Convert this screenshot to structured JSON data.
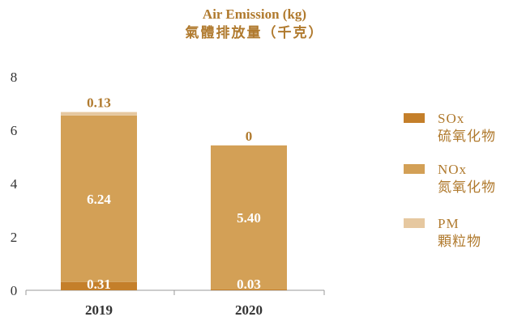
{
  "chart_data": {
    "type": "bar",
    "stacked": true,
    "title": "Air Emission (kg)",
    "subtitle": "氣體排放量（千克）",
    "categories": [
      "2019",
      "2020"
    ],
    "ylim": [
      0,
      8
    ],
    "yticks": [
      0,
      2,
      4,
      6,
      8
    ],
    "grid": false,
    "legend_position": "right",
    "series": [
      {
        "name": "SOx",
        "name_zh": "硫氧化物",
        "values": [
          0.31,
          0.03
        ],
        "labels": [
          "0.31",
          "0.03"
        ],
        "color": "#c47f2a",
        "label_color": "#ffffff"
      },
      {
        "name": "NOx",
        "name_zh": "氮氧化物",
        "values": [
          6.24,
          5.4
        ],
        "labels": [
          "6.24",
          "5.40"
        ],
        "color": "#d3a056",
        "label_color": "#ffffff"
      },
      {
        "name": "PM",
        "name_zh": "顆粒物",
        "values": [
          0.13,
          0
        ],
        "labels": [
          "0.13",
          "0"
        ],
        "color": "#e6c8a0",
        "label_color": "#b07a2e"
      }
    ]
  }
}
